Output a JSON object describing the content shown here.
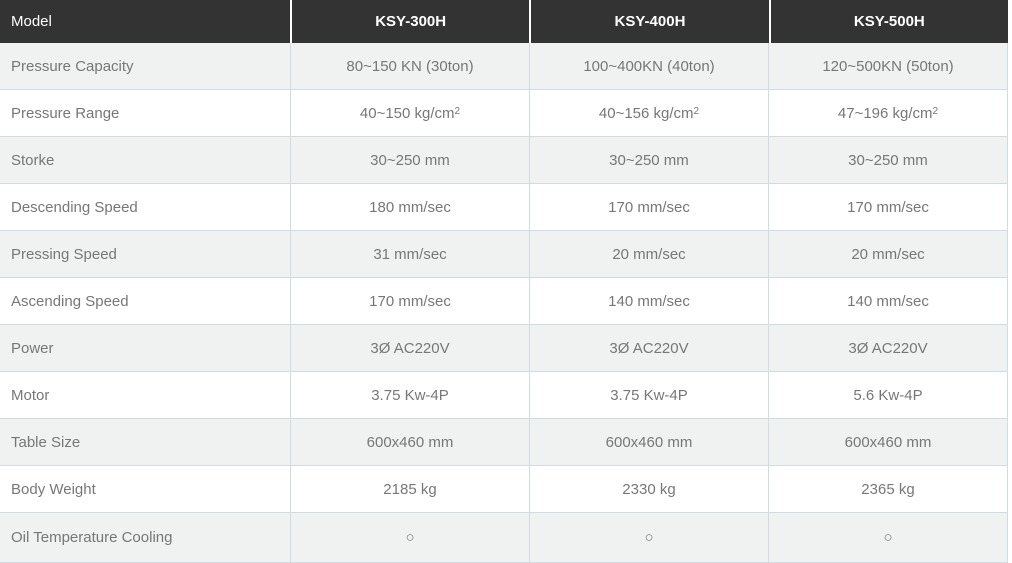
{
  "table": {
    "header": {
      "model_label": "Model",
      "columns": [
        "KSY-300H",
        "KSY-400H",
        "KSY-500H"
      ]
    },
    "rows": [
      {
        "label": "Pressure Capacity",
        "values": [
          "80~150 KN (30ton)",
          "100~400KN (40ton)",
          "120~500KN (50ton)"
        ]
      },
      {
        "label": "Pressure Range",
        "values": [
          "40~150 kg/cm^2",
          "40~156 kg/cm^2",
          "47~196 kg/cm^2"
        ]
      },
      {
        "label": "Storke",
        "values": [
          "30~250 mm",
          "30~250 mm",
          "30~250 mm"
        ]
      },
      {
        "label": "Descending Speed",
        "values": [
          "180 mm/sec",
          "170 mm/sec",
          "170 mm/sec"
        ]
      },
      {
        "label": "Pressing Speed",
        "values": [
          "31 mm/sec",
          "20 mm/sec",
          "20 mm/sec"
        ]
      },
      {
        "label": "Ascending Speed",
        "values": [
          "170 mm/sec",
          "140 mm/sec",
          "140 mm/sec"
        ]
      },
      {
        "label": "Power",
        "values": [
          "3Ø AC220V",
          "3Ø AC220V",
          "3Ø AC220V"
        ]
      },
      {
        "label": "Motor",
        "values": [
          "3.75 Kw-4P",
          "3.75 Kw-4P",
          "5.6 Kw-4P"
        ]
      },
      {
        "label": "Table Size",
        "values": [
          "600x460 mm",
          "600x460 mm",
          "600x460 mm"
        ]
      },
      {
        "label": "Body Weight",
        "values": [
          "2185 kg",
          "2330 kg",
          "2365 kg"
        ]
      },
      {
        "label": "Oil Temperature Cooling",
        "values": [
          "○",
          "○",
          "○"
        ]
      }
    ],
    "colors": {
      "header_bg": "#333333",
      "header_text": "#ffffff",
      "body_text": "#777777",
      "row_alt_bg": "#f0f1f1",
      "row_bg": "#ffffff",
      "grid_border": "#cfdce2"
    }
  }
}
